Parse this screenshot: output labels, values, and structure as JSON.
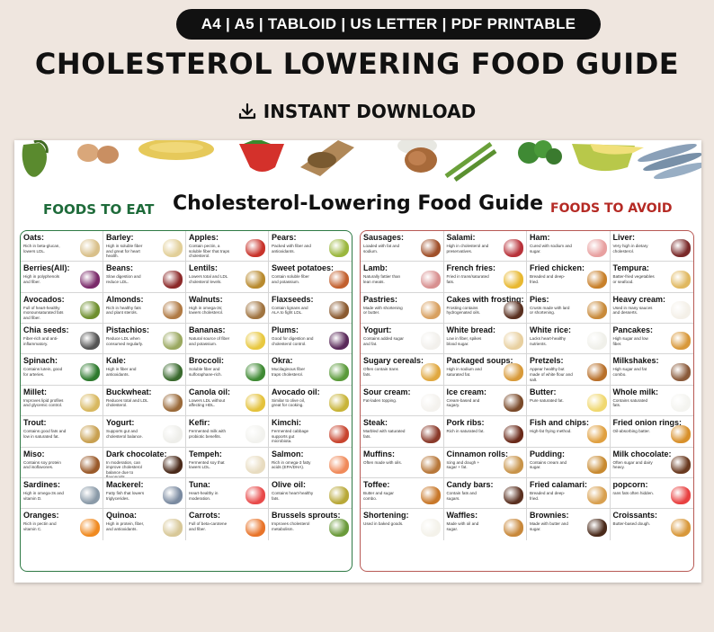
{
  "banner": "A4 | A5 | TABLOID | US LETTER | PDF PRINTABLE",
  "main_title": "CHOLESTEROL LOWERING  FOOD GUIDE",
  "download_label": "INSTANT DOWNLOAD",
  "poster": {
    "left_heading": "FOODS TO EAT",
    "title": "Cholesterol-Lowering Food Guide",
    "right_heading": "FOODS TO AVOID",
    "eat_items": [
      {
        "name": "Oats:",
        "desc": "Rich in beta-glucan, lowers LDL.",
        "color": "#d9c08a"
      },
      {
        "name": "Barley:",
        "desc": "High in soluble fiber and great for heart health.",
        "color": "#e2cf98"
      },
      {
        "name": "Apples:",
        "desc": "Contain pectin, a soluble fiber that traps cholesterol.",
        "color": "#c8332b"
      },
      {
        "name": "Pears:",
        "desc": "Packed with fiber and antioxidants.",
        "color": "#9ab73d"
      },
      {
        "name": "Berries(All):",
        "desc": "High in polyphenols and fiber.",
        "color": "#7a2a6a"
      },
      {
        "name": "Beans:",
        "desc": "Slow digestion and reduce LDL.",
        "color": "#8c2a2a"
      },
      {
        "name": "Lentils:",
        "desc": "Lowers total and LDL cholesterol levels.",
        "color": "#b88a2e"
      },
      {
        "name": "Sweet potatoes:",
        "desc": "Contain soluble fiber and potassium.",
        "color": "#c2602e"
      },
      {
        "name": "Avocados:",
        "desc": "Full of heart-healthy monounsaturated fats and fiber.",
        "color": "#6e8f2e"
      },
      {
        "name": "Almonds:",
        "desc": "Rich in healthy fats and plant sterols.",
        "color": "#b07a44"
      },
      {
        "name": "Walnuts:",
        "desc": "High in omega-3s; lowers cholesterol.",
        "color": "#a07440"
      },
      {
        "name": "Flaxseeds:",
        "desc": "Contain lignans and ALA to fight LDL.",
        "color": "#8a5a30"
      },
      {
        "name": "Chia seeds:",
        "desc": "Fiber-rich and anti-inflammatory.",
        "color": "#555555"
      },
      {
        "name": "Pistachios:",
        "desc": "Reduce LDL when consumed regularly.",
        "color": "#9aa860"
      },
      {
        "name": "Bananas:",
        "desc": "Natural source of fiber and potassium.",
        "color": "#e8c840"
      },
      {
        "name": "Plums:",
        "desc": "Good for digestion and cholesterol control.",
        "color": "#5a2a5a"
      },
      {
        "name": "Spinach:",
        "desc": "Contains lutein, good for arteries.",
        "color": "#2e7a2e"
      },
      {
        "name": "Kale:",
        "desc": "High in fiber and antioxidants.",
        "color": "#3a6a2e"
      },
      {
        "name": "Broccoli:",
        "desc": "Soluble fiber and sulforaphane-rich.",
        "color": "#3f8a34"
      },
      {
        "name": "Okra:",
        "desc": "Mucilaginous fiber traps cholesterol.",
        "color": "#5a9a3a"
      },
      {
        "name": "Millet:",
        "desc": "Improves lipid profiles and glycemic control.",
        "color": "#d8b860"
      },
      {
        "name": "Buckwheat:",
        "desc": "Reduces total and LDL cholesterol.",
        "color": "#9a6a3a"
      },
      {
        "name": "Canola oil:",
        "desc": "Lowers LDL without affecting HDL.",
        "color": "#e4c23c"
      },
      {
        "name": "Avocado oil:",
        "desc": "Similar to olive oil, great for cooking.",
        "color": "#c8b438"
      },
      {
        "name": "Trout:",
        "desc": "Contains good fats and low in saturated fat.",
        "color": "#c8a050"
      },
      {
        "name": "Yogurt:",
        "desc": "Supports gut and cholesterol balance.",
        "color": "#eeeeea"
      },
      {
        "name": "Kefir:",
        "desc": "Fermented milk with probiotic benefits.",
        "color": "#f2f2ee"
      },
      {
        "name": "Kimchi:",
        "desc": "Fermented cabbage supports gut microbiota.",
        "color": "#c8442e"
      },
      {
        "name": "Miso:",
        "desc": "Contains soy protein and isoflavones.",
        "color": "#9a5a2a"
      },
      {
        "name": "Dark chocolate:",
        "desc": "In moderation, can improve cholesterol balance due to flavonoids.",
        "color": "#4a2a1a"
      },
      {
        "name": "Tempeh:",
        "desc": "Fermented soy that lowers LDL.",
        "color": "#e8dcc0"
      },
      {
        "name": "Salmon:",
        "desc": "Rich in omega-3 fatty acids (EPA/DHA).",
        "color": "#f08a5a"
      },
      {
        "name": "Sardines:",
        "desc": "High in omega-3s and vitamin D.",
        "color": "#8a9aa8"
      },
      {
        "name": "Mackerel:",
        "desc": "Fatty fish that lowers triglycerides.",
        "color": "#7a8aa0"
      },
      {
        "name": "Tuna:",
        "desc": "Heart-healthy in moderation.",
        "color": "#e84a4a"
      },
      {
        "name": "Olive oil:",
        "desc": "Contains heart-healthy fats.",
        "color": "#b8a838"
      },
      {
        "name": "Oranges:",
        "desc": "Rich in pectin and vitamin C.",
        "color": "#f08a20"
      },
      {
        "name": "Quinoa:",
        "desc": "High in protein, fiber, and antioxidants.",
        "color": "#d8c898"
      },
      {
        "name": "Carrots:",
        "desc": "Full of beta-carotene and fiber.",
        "color": "#e8742a"
      },
      {
        "name": "Brussels sprouts:",
        "desc": "Improves cholesterol metabolism.",
        "color": "#6a9a3a"
      }
    ],
    "avoid_items": [
      {
        "name": "Sausages:",
        "desc": "Loaded with fat and sodium.",
        "color": "#a0502a"
      },
      {
        "name": "Salami:",
        "desc": "High in cholesterol and preservatives.",
        "color": "#b8323a"
      },
      {
        "name": "Ham:",
        "desc": "Cured with sodium and sugar.",
        "color": "#e8a0a0"
      },
      {
        "name": "Liver:",
        "desc": "Very high in dietary cholesterol.",
        "color": "#7a2a2a"
      },
      {
        "name": "Lamb:",
        "desc": "Naturally fattier than lean meats.",
        "color": "#d89090"
      },
      {
        "name": "French fries:",
        "desc": "Fried in trans/saturated fats.",
        "color": "#e8b830"
      },
      {
        "name": "Fried chicken:",
        "desc": "Breaded and deep-fried.",
        "color": "#c8802a"
      },
      {
        "name": "Tempura:",
        "desc": "Batter-fried vegetables or seafood.",
        "color": "#e0b860"
      },
      {
        "name": "Pastries:",
        "desc": "Made with shortening or butter.",
        "color": "#d8a060"
      },
      {
        "name": "Cakes with frosting:",
        "desc": "Frosting contains hydrogenated oils.",
        "color": "#5a3020"
      },
      {
        "name": "Pies:",
        "desc": "Crusts made with lard or shortening.",
        "color": "#c88a3a"
      },
      {
        "name": "Heavy cream:",
        "desc": "Used in many sauces and desserts.",
        "color": "#f4f0e8"
      },
      {
        "name": "Yogurt:",
        "desc": "Contains added sugar and fat.",
        "color": "#f2f0ec"
      },
      {
        "name": "White bread:",
        "desc": "Low in fiber, spikes blood sugar.",
        "color": "#e8d0a0"
      },
      {
        "name": "White rice:",
        "desc": "Lacks heart-healthy nutrients.",
        "color": "#f0f0ea"
      },
      {
        "name": "Pancakes:",
        "desc": "High sugar and low fiber.",
        "color": "#d8983a"
      },
      {
        "name": "Sugary cereals:",
        "desc": "Often contain trans fats.",
        "color": "#e0a840"
      },
      {
        "name": "Packaged soups:",
        "desc": "High in sodium and saturated fat.",
        "color": "#d89a3a"
      },
      {
        "name": "Pretzels:",
        "desc": "Appear healthy but made of white flour and salt.",
        "color": "#b8702a"
      },
      {
        "name": "Milkshakes:",
        "desc": "High sugar and fat combo.",
        "color": "#8a5a3a"
      },
      {
        "name": "Sour cream:",
        "desc": "Fat-laden topping.",
        "color": "#f4f2ee"
      },
      {
        "name": "Ice cream:",
        "desc": "Cream-based and sugary.",
        "color": "#7a4a2a"
      },
      {
        "name": "Butter:",
        "desc": "Pure saturated fat.",
        "color": "#f0d870"
      },
      {
        "name": "Whole milk:",
        "desc": "Contains saturated fats.",
        "color": "#f4f4f0"
      },
      {
        "name": "Steak:",
        "desc": "Marbled with saturated fats.",
        "color": "#8a3a2a"
      },
      {
        "name": "Pork ribs:",
        "desc": "Rich in saturated fat.",
        "color": "#6a2a1a"
      },
      {
        "name": "Fish and chips:",
        "desc": "High-fat frying method.",
        "color": "#e0a040"
      },
      {
        "name": "Fried onion rings:",
        "desc": "Oil-absorbing batter.",
        "color": "#d8902a"
      },
      {
        "name": "Muffins:",
        "desc": "Often made with oils.",
        "color": "#b8783a"
      },
      {
        "name": "Cinnamon rolls:",
        "desc": "Icing and dough + sugar + fat.",
        "color": "#c8944a"
      },
      {
        "name": "Pudding:",
        "desc": "Contains cream and sugar.",
        "color": "#c88a30"
      },
      {
        "name": "Milk chocolate:",
        "desc": "Often sugar and dairy heavy.",
        "color": "#6a3a20"
      },
      {
        "name": "Toffee:",
        "desc": "Butter and sugar combo.",
        "color": "#c8782a"
      },
      {
        "name": "Candy bars:",
        "desc": "Contain fats and sugars.",
        "color": "#5a3020"
      },
      {
        "name": "Fried calamari:",
        "desc": "Breaded and deep-fried.",
        "color": "#d8a050"
      },
      {
        "name": "popcorn:",
        "desc": "rans fats often hidden.",
        "color": "#e84040"
      },
      {
        "name": "Shortening:",
        "desc": "Used in baked goods.",
        "color": "#f4f2ea"
      },
      {
        "name": "Waffles:",
        "desc": "Made with oil and sugar.",
        "color": "#c8883a"
      },
      {
        "name": "Brownies:",
        "desc": "Made with butter and sugar.",
        "color": "#4a2a1a"
      },
      {
        "name": "Croissants:",
        "desc": "Butter-based dough.",
        "color": "#d8983a"
      }
    ]
  },
  "colors": {
    "eat_accent": "#2f7a45",
    "avoid_accent": "#b52a24",
    "background": "#efe6df"
  }
}
